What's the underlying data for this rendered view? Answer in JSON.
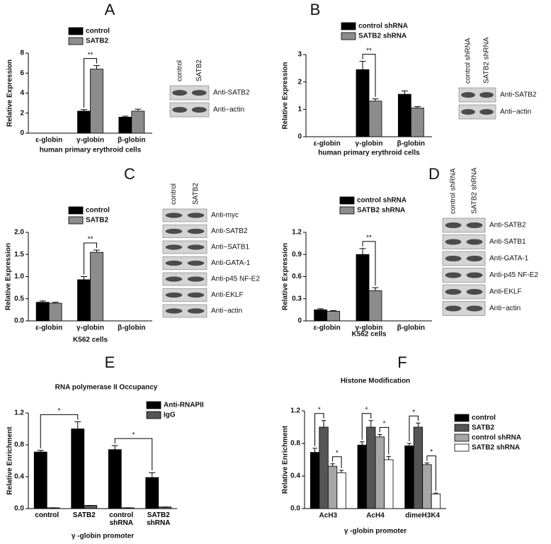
{
  "chart_data": [
    {
      "type": "bar",
      "panel": "A",
      "y_label": "Relative Expression",
      "x_label": "human primary erythroid cells",
      "categories": [
        "ε-globin",
        "γ-globin",
        "β-globin"
      ],
      "series": [
        {
          "name": "control",
          "color": "#000000",
          "values": [
            0,
            2.2,
            1.6
          ],
          "errors": [
            0,
            0.15,
            0.1
          ]
        },
        {
          "name": "SATB2",
          "color": "#8c8c8c",
          "values": [
            0,
            6.4,
            2.2
          ],
          "errors": [
            0,
            0.35,
            0.2
          ]
        }
      ],
      "ylim": [
        0,
        8
      ],
      "yticks": [
        0,
        2,
        4,
        6,
        8
      ],
      "annotations": [
        "**"
      ]
    },
    {
      "type": "bar",
      "panel": "B",
      "y_label": "Relative Expression",
      "x_label": "human primary erythroid cells",
      "categories": [
        "ε-globin",
        "γ-globin",
        "β-globin"
      ],
      "series": [
        {
          "name": "control shRNA",
          "color": "#000000",
          "values": [
            0,
            2.45,
            1.55
          ],
          "errors": [
            0,
            0.3,
            0.12
          ]
        },
        {
          "name": "SATB2 shRNA",
          "color": "#8c8c8c",
          "values": [
            0,
            1.3,
            1.05
          ],
          "errors": [
            0,
            0.08,
            0.05
          ]
        }
      ],
      "ylim": [
        0,
        3
      ],
      "yticks": [
        0,
        1,
        2,
        3
      ],
      "annotations": [
        "**"
      ]
    },
    {
      "type": "bar",
      "panel": "C",
      "y_label": "Relative Expression",
      "x_label": "K562 cells",
      "categories": [
        "ε-globin",
        "γ-globin",
        "β-globin"
      ],
      "series": [
        {
          "name": "control",
          "color": "#000000",
          "values": [
            0.42,
            0.93,
            0
          ],
          "errors": [
            0.03,
            0.07,
            0
          ]
        },
        {
          "name": "SATB2",
          "color": "#8c8c8c",
          "values": [
            0.4,
            1.55,
            0
          ],
          "errors": [
            0.02,
            0.05,
            0
          ]
        }
      ],
      "ylim": [
        0,
        2
      ],
      "yticks": [
        {
          "value": 0,
          "label": "0.0"
        },
        0.5,
        {
          "value": 1,
          "label": "1.0"
        },
        1.5,
        {
          "value": 2,
          "label": "2.0"
        }
      ],
      "annotations": [
        "**"
      ]
    },
    {
      "type": "bar",
      "panel": "D",
      "y_label": "Relative Expression",
      "x_label": "K562 cells",
      "categories": [
        "ε-globin",
        "γ-globin",
        "β-globin"
      ],
      "series": [
        {
          "name": "control shRNA",
          "color": "#000000",
          "values": [
            0.15,
            0.9,
            0
          ],
          "errors": [
            0.015,
            0.08,
            0
          ]
        },
        {
          "name": "SATB2 shRNA",
          "color": "#8c8c8c",
          "values": [
            0.13,
            0.41,
            0
          ],
          "errors": [
            0.01,
            0.04,
            0
          ]
        }
      ],
      "ylim": [
        0,
        1.2
      ],
      "yticks": [
        0,
        0.3,
        0.6,
        0.9,
        1.2
      ],
      "annotations": [
        "**"
      ]
    },
    {
      "type": "bar",
      "panel": "E",
      "title": "RNA polymerase II Occupancy",
      "y_label": "Relative Enrichment",
      "x_label": "γ -globin promoter",
      "categories": [
        "control",
        "SATB2",
        "control shRNA",
        "SATB2 shRNA"
      ],
      "series": [
        {
          "name": "Anti-RNAPII",
          "color": "#000000",
          "values": [
            0.71,
            1.0,
            0.74,
            0.39
          ],
          "errors": [
            0.02,
            0.09,
            0.05,
            0.06
          ]
        },
        {
          "name": "IgG",
          "color": "#555555",
          "values": [
            0.01,
            0.04,
            0.01,
            0.02
          ],
          "errors": [
            0,
            0,
            0,
            0
          ]
        }
      ],
      "ylim": [
        0,
        1.2
      ],
      "yticks": [
        {
          "value": 0,
          "label": "0.0"
        },
        0.4,
        0.8,
        1.2
      ],
      "annotations": [
        "*",
        "*"
      ]
    },
    {
      "type": "bar",
      "panel": "F",
      "title": "Histone Modification",
      "y_label": "Relative Enrichment",
      "x_label": "γ -globin promoter",
      "categories": [
        "AcH3",
        "AcH4",
        "dimeH3K4"
      ],
      "series": [
        {
          "name": "control",
          "color": "#000000",
          "values": [
            0.69,
            0.78,
            0.77
          ],
          "errors": [
            0.05,
            0.04,
            0.03
          ]
        },
        {
          "name": "SATB2",
          "color": "#555555",
          "values": [
            1.0,
            1.0,
            1.0
          ],
          "errors": [
            0.08,
            0.08,
            0.05
          ]
        },
        {
          "name": "control shRNA",
          "color": "#a6a6a6",
          "values": [
            0.52,
            0.88,
            0.54
          ],
          "errors": [
            0.03,
            0.03,
            0.02
          ]
        },
        {
          "name": "SATB2 shRNA",
          "color": "#ffffff",
          "values": [
            0.44,
            0.6,
            0.18
          ],
          "errors": [
            0.03,
            0.04,
            0.01
          ]
        }
      ],
      "ylim": [
        0,
        1.2
      ],
      "yticks": [
        {
          "value": 0,
          "label": "0.0"
        },
        0.4,
        0.8,
        1.2
      ],
      "annotations": [
        "*",
        "*",
        "*",
        "*",
        "*",
        "*"
      ]
    }
  ],
  "blots": [
    {
      "lanes": [
        "control",
        "SATB2"
      ],
      "rows": [
        "Anti-SATB2",
        "Anti−actin"
      ]
    },
    {
      "lanes": [
        "control shRNA",
        "SATB2 shRNA"
      ],
      "rows": [
        "Anti-SATB2",
        "Anti−actin"
      ]
    },
    {
      "lanes": [
        "control",
        "SATB2"
      ],
      "rows": [
        "Anti-myc",
        "Anti-SATB2",
        "Anti−SATB1",
        "Anti-GATA-1",
        "Anti-p45 NF-E2",
        "Anti-EKLF",
        "Anti−actin"
      ]
    },
    {
      "lanes": [
        "control shRNA",
        "SATB2 shRNA"
      ],
      "rows": [
        "Anti-SATB2",
        "Anti-SATB1",
        "Anti-GATA-1",
        "Anti-p45 NF-E2",
        "Anti-EKLF",
        "Anti−actin"
      ]
    }
  ]
}
